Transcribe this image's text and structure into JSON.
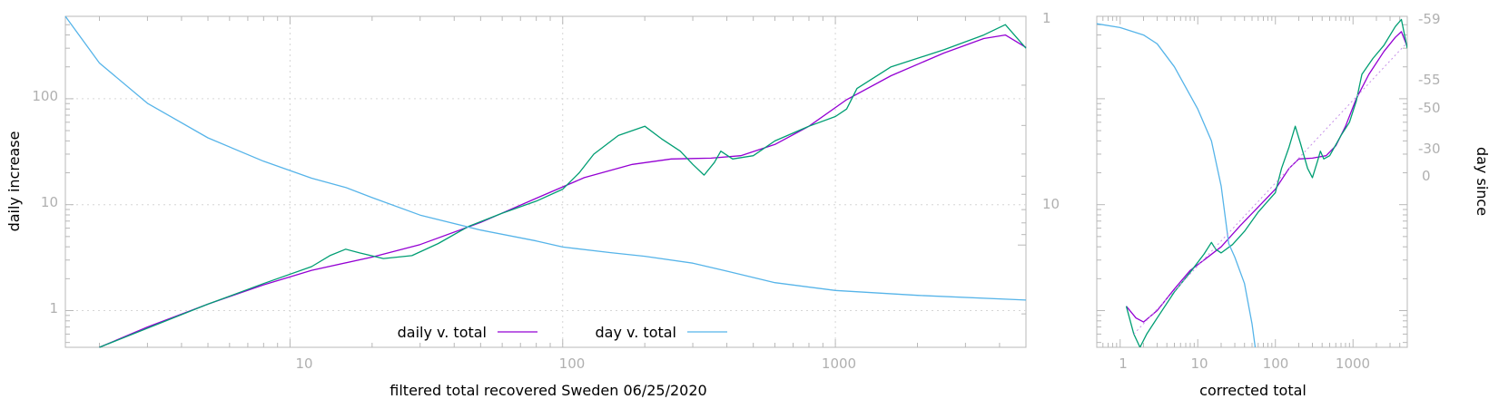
{
  "chart_data": [
    {
      "type": "line",
      "panel": "main",
      "xlabel": "filtered total recovered Sweden 06/25/2020",
      "ylabel": "daily increase",
      "x_scale": "log",
      "y_scale": "log",
      "xlim": [
        1.5,
        5000
      ],
      "ylim": [
        0.45,
        600
      ],
      "y2_scale": "log",
      "y2lim": [
        28,
        1
      ],
      "grid": true,
      "legend_position": "bottom-center",
      "xticks": [
        "10",
        "100",
        "1000"
      ],
      "yticks": [
        "1",
        "10",
        "100"
      ],
      "y2ticks": [
        "1",
        "10"
      ],
      "series": [
        {
          "name": "daily v. total",
          "color": "#9400d3",
          "points": [
            [
              2,
              0.45
            ],
            [
              3,
              0.7
            ],
            [
              5,
              1.15
            ],
            [
              8,
              1.75
            ],
            [
              12,
              2.4
            ],
            [
              20,
              3.2
            ],
            [
              30,
              4.2
            ],
            [
              50,
              6.8
            ],
            [
              80,
              11.5
            ],
            [
              120,
              18
            ],
            [
              180,
              24
            ],
            [
              250,
              27
            ],
            [
              350,
              27.5
            ],
            [
              450,
              29
            ],
            [
              600,
              37
            ],
            [
              800,
              55
            ],
            [
              1100,
              98
            ],
            [
              1600,
              165
            ],
            [
              2500,
              270
            ],
            [
              3500,
              370
            ],
            [
              4200,
              400
            ],
            [
              5000,
              305
            ]
          ]
        },
        {
          "name": "",
          "color": "#009e73",
          "points": [
            [
              2,
              0.45
            ],
            [
              5,
              1.15
            ],
            [
              8,
              1.8
            ],
            [
              12,
              2.6
            ],
            [
              14,
              3.3
            ],
            [
              16,
              3.8
            ],
            [
              18,
              3.5
            ],
            [
              22,
              3.1
            ],
            [
              28,
              3.3
            ],
            [
              35,
              4.3
            ],
            [
              45,
              6.2
            ],
            [
              60,
              8.3
            ],
            [
              80,
              10.8
            ],
            [
              100,
              14
            ],
            [
              115,
              20
            ],
            [
              130,
              30
            ],
            [
              160,
              45
            ],
            [
              200,
              55
            ],
            [
              230,
              42
            ],
            [
              270,
              32
            ],
            [
              300,
              24
            ],
            [
              330,
              19
            ],
            [
              360,
              25
            ],
            [
              380,
              32
            ],
            [
              420,
              27
            ],
            [
              500,
              29
            ],
            [
              600,
              40
            ],
            [
              800,
              55
            ],
            [
              1000,
              68
            ],
            [
              1100,
              80
            ],
            [
              1200,
              125
            ],
            [
              1600,
              200
            ],
            [
              2500,
              290
            ],
            [
              3500,
              400
            ],
            [
              4200,
              500
            ],
            [
              5000,
              300
            ]
          ]
        },
        {
          "name": "day v. total",
          "color": "#56b4e9",
          "axis": "y2",
          "points": [
            [
              1.5,
              1
            ],
            [
              2,
              1.6
            ],
            [
              3,
              2.4
            ],
            [
              5,
              3.4
            ],
            [
              8,
              4.3
            ],
            [
              12,
              5.1
            ],
            [
              16,
              5.6
            ],
            [
              20,
              6.2
            ],
            [
              30,
              7.4
            ],
            [
              50,
              8.6
            ],
            [
              80,
              9.6
            ],
            [
              100,
              10.2
            ],
            [
              150,
              10.8
            ],
            [
              200,
              11.2
            ],
            [
              300,
              12.0
            ],
            [
              400,
              13.0
            ],
            [
              600,
              14.6
            ],
            [
              1000,
              15.8
            ],
            [
              2000,
              16.6
            ],
            [
              5000,
              17.4
            ]
          ]
        }
      ]
    },
    {
      "type": "line",
      "panel": "side",
      "xlabel": "corrected total",
      "ylabel": "day since",
      "x_scale": "log",
      "y_scale": "log",
      "xlim": [
        0.5,
        5000
      ],
      "ylim": [
        0.45,
        600
      ],
      "xticks": [
        "1",
        "10",
        "100",
        "1000"
      ],
      "y2ticks": [
        "-59",
        "-55",
        "-50",
        "-30",
        "0"
      ],
      "series": [
        {
          "name": "",
          "color": "#9400d3",
          "points": [
            [
              1.2,
              1.1
            ],
            [
              1.6,
              0.85
            ],
            [
              2,
              0.78
            ],
            [
              3,
              1.0
            ],
            [
              5,
              1.6
            ],
            [
              8,
              2.4
            ],
            [
              12,
              3.0
            ],
            [
              20,
              4.0
            ],
            [
              35,
              6.3
            ],
            [
              60,
              9.5
            ],
            [
              100,
              14
            ],
            [
              150,
              22
            ],
            [
              200,
              27
            ],
            [
              300,
              27.5
            ],
            [
              450,
              29
            ],
            [
              600,
              36
            ],
            [
              800,
              55
            ],
            [
              1100,
              100
            ],
            [
              1600,
              170
            ],
            [
              2500,
              280
            ],
            [
              3500,
              380
            ],
            [
              4200,
              430
            ],
            [
              5000,
              310
            ]
          ]
        },
        {
          "name": "",
          "color": "#009e73",
          "points": [
            [
              1.2,
              1.1
            ],
            [
              1.5,
              0.6
            ],
            [
              1.8,
              0.45
            ],
            [
              2.2,
              0.6
            ],
            [
              3,
              0.85
            ],
            [
              5,
              1.5
            ],
            [
              8,
              2.3
            ],
            [
              12,
              3.4
            ],
            [
              15,
              4.4
            ],
            [
              17,
              3.8
            ],
            [
              20,
              3.5
            ],
            [
              28,
              4.2
            ],
            [
              40,
              5.6
            ],
            [
              60,
              8.5
            ],
            [
              100,
              13
            ],
            [
              120,
              22
            ],
            [
              150,
              35
            ],
            [
              180,
              55
            ],
            [
              210,
              38
            ],
            [
              260,
              22
            ],
            [
              300,
              18
            ],
            [
              350,
              26
            ],
            [
              380,
              32
            ],
            [
              420,
              27
            ],
            [
              500,
              29
            ],
            [
              700,
              45
            ],
            [
              900,
              60
            ],
            [
              1100,
              95
            ],
            [
              1300,
              170
            ],
            [
              1800,
              240
            ],
            [
              2500,
              320
            ],
            [
              3500,
              480
            ],
            [
              4200,
              560
            ],
            [
              5000,
              300
            ]
          ]
        },
        {
          "name": "",
          "color": "#56b4e9",
          "points": [
            [
              0.5,
              510
            ],
            [
              1,
              470
            ],
            [
              2,
              400
            ],
            [
              3,
              330
            ],
            [
              5,
              200
            ],
            [
              10,
              80
            ],
            [
              15,
              40
            ],
            [
              20,
              15
            ],
            [
              25,
              4.3
            ],
            [
              30,
              3.2
            ],
            [
              40,
              1.8
            ],
            [
              50,
              0.75
            ],
            [
              55,
              0.45
            ]
          ]
        },
        {
          "name": "",
          "color": "#c690e8",
          "dashed": true,
          "points": [
            [
              1.5,
              0.6
            ],
            [
              5000,
              340
            ]
          ]
        }
      ]
    }
  ],
  "legend": [
    {
      "label": "daily v. total",
      "color": "#9400d3"
    },
    {
      "label": "day v. total",
      "color": "#56b4e9"
    }
  ]
}
